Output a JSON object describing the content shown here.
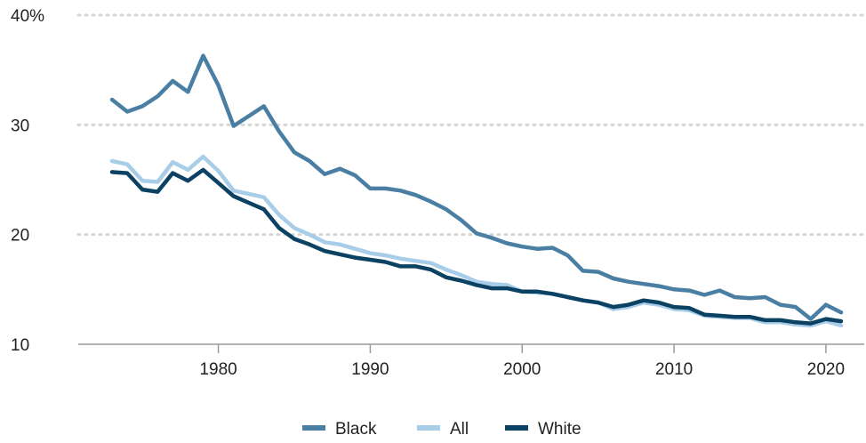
{
  "chart_data": {
    "type": "line",
    "title": "",
    "xlabel": "",
    "ylabel": "",
    "xlim": [
      1973,
      2021
    ],
    "ylim": [
      10,
      40
    ],
    "yticks": [
      10,
      20,
      30,
      40
    ],
    "ytick_labels": [
      "10",
      "20",
      "30",
      "40%"
    ],
    "xticks": [
      1980,
      1990,
      2000,
      2010,
      2020
    ],
    "xtick_labels": [
      "1980",
      "1990",
      "2000",
      "2010",
      "2020"
    ],
    "grid": "horizontal-dotted",
    "legend_position": "bottom-center",
    "x": [
      1973,
      1974,
      1975,
      1976,
      1977,
      1978,
      1979,
      1980,
      1981,
      1982,
      1983,
      1984,
      1985,
      1986,
      1987,
      1988,
      1989,
      1990,
      1991,
      1992,
      1993,
      1994,
      1995,
      1996,
      1997,
      1998,
      1999,
      2000,
      2001,
      2002,
      2003,
      2004,
      2005,
      2006,
      2007,
      2008,
      2009,
      2010,
      2011,
      2012,
      2013,
      2014,
      2015,
      2016,
      2017,
      2018,
      2019,
      2020,
      2021
    ],
    "series": [
      {
        "name": "Black",
        "color": "#4a7fa3",
        "values": [
          32.3,
          31.2,
          31.7,
          32.6,
          34.0,
          33.0,
          36.3,
          33.6,
          29.9,
          30.8,
          31.7,
          29.4,
          27.5,
          26.7,
          25.5,
          26.0,
          25.4,
          24.2,
          24.2,
          24.0,
          23.6,
          23.0,
          22.3,
          21.3,
          20.1,
          19.7,
          19.2,
          18.9,
          18.7,
          18.8,
          18.1,
          16.7,
          16.6,
          16.0,
          15.7,
          15.5,
          15.3,
          15.0,
          14.9,
          14.5,
          14.9,
          14.3,
          14.2,
          14.3,
          13.6,
          13.4,
          12.3,
          13.6,
          12.9
        ]
      },
      {
        "name": "All",
        "color": "#a8cde9",
        "values": [
          26.7,
          26.4,
          24.9,
          24.8,
          26.6,
          25.9,
          27.1,
          25.8,
          24.0,
          23.7,
          23.4,
          21.8,
          20.6,
          20.0,
          19.3,
          19.1,
          18.7,
          18.3,
          18.1,
          17.8,
          17.6,
          17.4,
          16.8,
          16.3,
          15.7,
          15.5,
          15.4,
          14.8,
          14.7,
          14.6,
          14.3,
          14.0,
          13.8,
          13.2,
          13.4,
          13.8,
          13.6,
          13.2,
          13.1,
          12.6,
          12.5,
          12.4,
          12.4,
          12.0,
          12.0,
          11.8,
          11.7,
          12.1,
          11.7
        ]
      },
      {
        "name": "White",
        "color": "#0b4162",
        "values": [
          25.7,
          25.6,
          24.1,
          23.9,
          25.6,
          24.9,
          25.9,
          24.7,
          23.5,
          22.9,
          22.3,
          20.6,
          19.6,
          19.1,
          18.5,
          18.2,
          17.9,
          17.7,
          17.5,
          17.1,
          17.1,
          16.8,
          16.1,
          15.8,
          15.4,
          15.1,
          15.1,
          14.8,
          14.8,
          14.6,
          14.3,
          14.0,
          13.8,
          13.4,
          13.6,
          14.0,
          13.8,
          13.4,
          13.3,
          12.7,
          12.6,
          12.5,
          12.5,
          12.2,
          12.2,
          12.0,
          11.9,
          12.3,
          12.1
        ]
      }
    ]
  }
}
